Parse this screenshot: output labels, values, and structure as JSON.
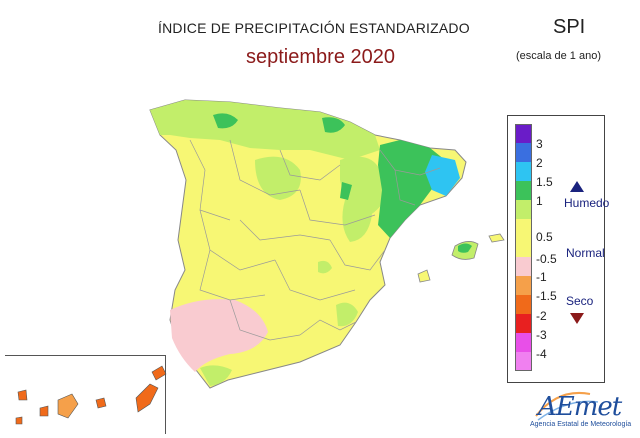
{
  "header": {
    "title": "ÍNDICE DE PRECIPITACIÓN ESTANDARIZADO",
    "subtitle": "septiembre 2020",
    "index": "SPI",
    "scale": "(escala de 1 ano)"
  },
  "legend": {
    "classes": [
      {
        "label": "3",
        "color": "#6a1cc8"
      },
      {
        "label": "2",
        "color": "#3a6fe0"
      },
      {
        "label": "1.5",
        "color": "#2ec4f2"
      },
      {
        "label": "1",
        "color": "#3cc25a"
      },
      {
        "label": "0.5",
        "color": "#c2ee6a"
      },
      {
        "label": "-0.5",
        "color": "#f7f774"
      },
      {
        "label": "-1",
        "color": "#f9cbd0"
      },
      {
        "label": "-1.5",
        "color": "#f5a04a"
      },
      {
        "label": "-2",
        "color": "#f06a1a"
      },
      {
        "label": "-3",
        "color": "#e82020"
      },
      {
        "label": "-4",
        "color": "#e84fe8"
      },
      {
        "label": "",
        "color": "#f080f0"
      }
    ],
    "humid_label": "Humedo",
    "normal_label": "Normal",
    "dry_label": "Seco"
  },
  "logo": {
    "name": "AEmet",
    "caption": "Agencia Estatal de Meteorología"
  }
}
